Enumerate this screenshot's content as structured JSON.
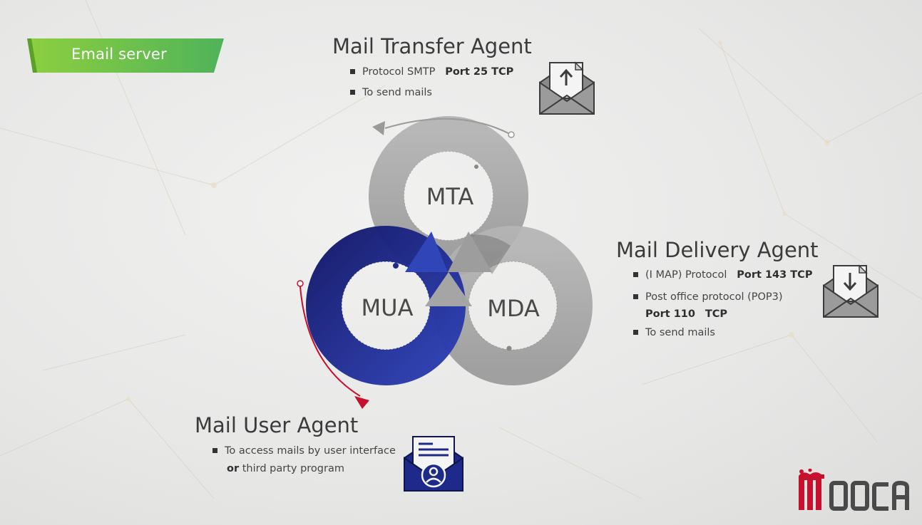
{
  "badge": {
    "label": "Email server",
    "color": "#6fbf3a"
  },
  "mta": {
    "heading": "Mail Transfer Agent",
    "ring_label": "MTA",
    "bullets": [
      {
        "text": "Protocol SMTP",
        "bold": "Port 25 TCP"
      },
      {
        "text": "To send mails",
        "bold": ""
      }
    ],
    "icon": "envelope-upload-icon"
  },
  "mda": {
    "heading": "Mail Delivery Agent",
    "ring_label": "MDA",
    "bullets": [
      {
        "text": "(I MAP) Protocol",
        "bold": "Port 143 TCP"
      },
      {
        "text": "Post office protocol (POP3)",
        "bold": ""
      },
      {
        "text": "To send mails",
        "bold": ""
      }
    ],
    "pop3_port_line": {
      "port": "Port 110",
      "proto": "TCP"
    },
    "icon": "envelope-download-icon"
  },
  "mua": {
    "heading": "Mail User Agent",
    "ring_label": "MUA",
    "bullets": [
      {
        "text": "To access mails by user interface",
        "bold": ""
      }
    ],
    "second_line": {
      "bold": "or",
      "text": "third party program"
    },
    "icon": "envelope-user-icon"
  },
  "logo": {
    "text": "MOOCA",
    "color": "#c8102e"
  },
  "colors": {
    "gray_ring": "#a9a9a9",
    "blue_ring": "#1d2a8a",
    "red_arrow": "#c8102e"
  }
}
